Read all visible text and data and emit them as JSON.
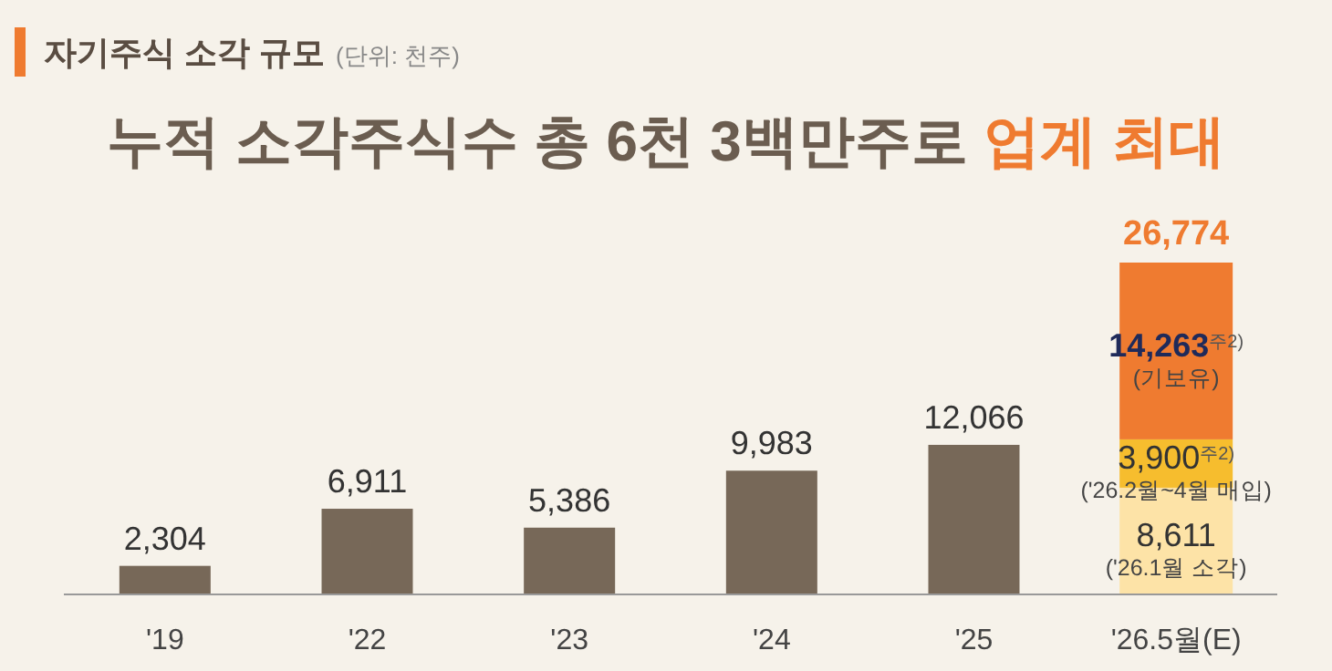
{
  "chart_data": {
    "type": "bar",
    "stacked": true,
    "subtitle": "자기주식 소각 규모",
    "title": "누적 소각주식수 총 6천 3백만주로 업계 최대",
    "categories": [
      "'19",
      "'22",
      "'23",
      "'24",
      "'25",
      "'26.5월(E)"
    ],
    "series": [
      {
        "colors": [
          "#776858",
          "#776858",
          "#776858",
          "#776858",
          "#776858",
          "#fde3a7"
        ],
        "values": [
          2304,
          6911,
          5386,
          9983,
          12066,
          8611
        ],
        "value_labels": [
          "2,304",
          "6,911",
          "5,386",
          "9,983",
          "12,066",
          "8,611"
        ]
      },
      {
        "color": "#f6bd2e",
        "values": [
          null,
          null,
          null,
          null,
          null,
          3900
        ],
        "value_labels": [
          null,
          null,
          null,
          null,
          null,
          "3,900$^{주2)}$"
        ]
      },
      {
        "color": "#ef7b30",
        "values": [
          null,
          null,
          null,
          null,
          null,
          14263
        ],
        "value_labels": [
          null,
          null,
          null,
          null,
          null,
          "14,263$^{주2)}$"
        ]
      }
    ],
    "totals": [
      null,
      null,
      null,
      null,
      null,
      "26,774"
    ],
    "annotations": [
      "(단위: 천주)",
      "(기보유)",
      "('26.2월~4월 매입)",
      "('26.1월 소각)"
    ]
  }
}
